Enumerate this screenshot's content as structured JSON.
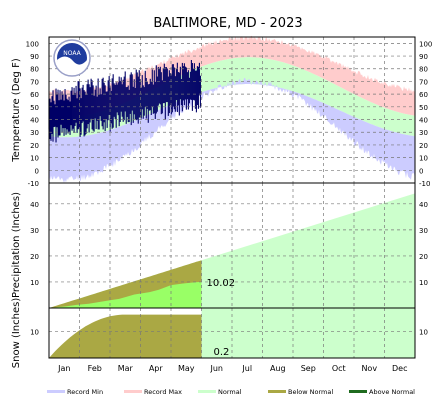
{
  "chart_data": {
    "type": "area",
    "title": "BALTIMORE, MD - 2023",
    "months": [
      "Jan",
      "Feb",
      "Mar",
      "Apr",
      "May",
      "Jun",
      "Jul",
      "Aug",
      "Sep",
      "Oct",
      "Nov",
      "Dec"
    ],
    "temperature": {
      "ylabel": "Temperature (Deg F)",
      "ylim": [
        -10,
        105
      ],
      "ticks": [
        -10,
        0,
        10,
        20,
        30,
        40,
        50,
        60,
        70,
        80,
        90,
        100
      ],
      "record_max_range": [
        62,
        104
      ],
      "record_min_range": [
        -7,
        70
      ],
      "normal_high_range": [
        42,
        89
      ],
      "normal_low_range": [
        26,
        68
      ],
      "observed_through_month": 5.0,
      "observed_range_jan": [
        24,
        62
      ],
      "observed_range_may": [
        50,
        86
      ]
    },
    "precipitation": {
      "ylabel": "Precipitation (Inches)",
      "ylim": [
        0,
        48
      ],
      "ticks": [
        10,
        20,
        30,
        40
      ],
      "normal_annual_total": 44,
      "observed_ytd_total": 10.02,
      "normal_ytd_at_last_obs": 19,
      "observed_ytd_label": "10.02"
    },
    "snow": {
      "ylabel": "Snow (Inches)",
      "ylim": [
        0,
        19
      ],
      "ticks": [
        10
      ],
      "normal_season_total": 16.5,
      "observed_ytd_total": 0.2,
      "observed_ytd_label": "0.2"
    },
    "legend": [
      {
        "name": "Record Min",
        "color": "#ccccff"
      },
      {
        "name": "Record Max",
        "color": "#ffcccc"
      },
      {
        "name": "Normal",
        "color": "#ccffcc"
      },
      {
        "name": "Below Normal",
        "color": "#aaa844"
      },
      {
        "name": "Above Normal",
        "color": "#1f6b1f"
      }
    ],
    "observed_color": "#000066",
    "logo_text": "NOAA"
  }
}
